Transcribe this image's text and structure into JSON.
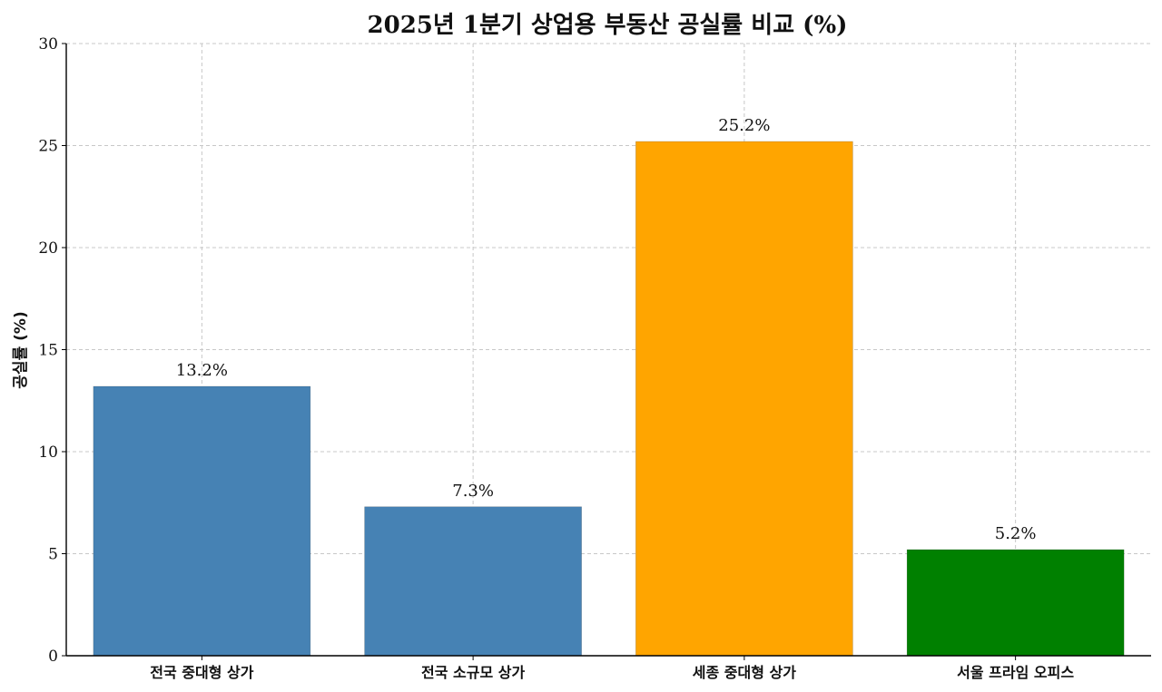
{
  "chart_data": {
    "type": "bar",
    "title": "2025년 1분기 상업용 부동산 공실률 비교 (%)",
    "xlabel": "",
    "ylabel": "공실률 (%)",
    "categories": [
      "전국 중대형 상가",
      "전국 소규모 상가",
      "세종 중대형 상가",
      "서울 프라임 오피스"
    ],
    "values": [
      13.2,
      7.3,
      25.2,
      5.2
    ],
    "value_labels": [
      "13.2%",
      "7.3%",
      "25.2%",
      "5.2%"
    ],
    "colors": [
      "#4682b4",
      "#4682b4",
      "#ffa500",
      "#008000"
    ],
    "ylim": [
      0,
      30
    ],
    "yticks": [
      0,
      5,
      10,
      15,
      20,
      25,
      30
    ],
    "grid": true,
    "legend": "none"
  }
}
